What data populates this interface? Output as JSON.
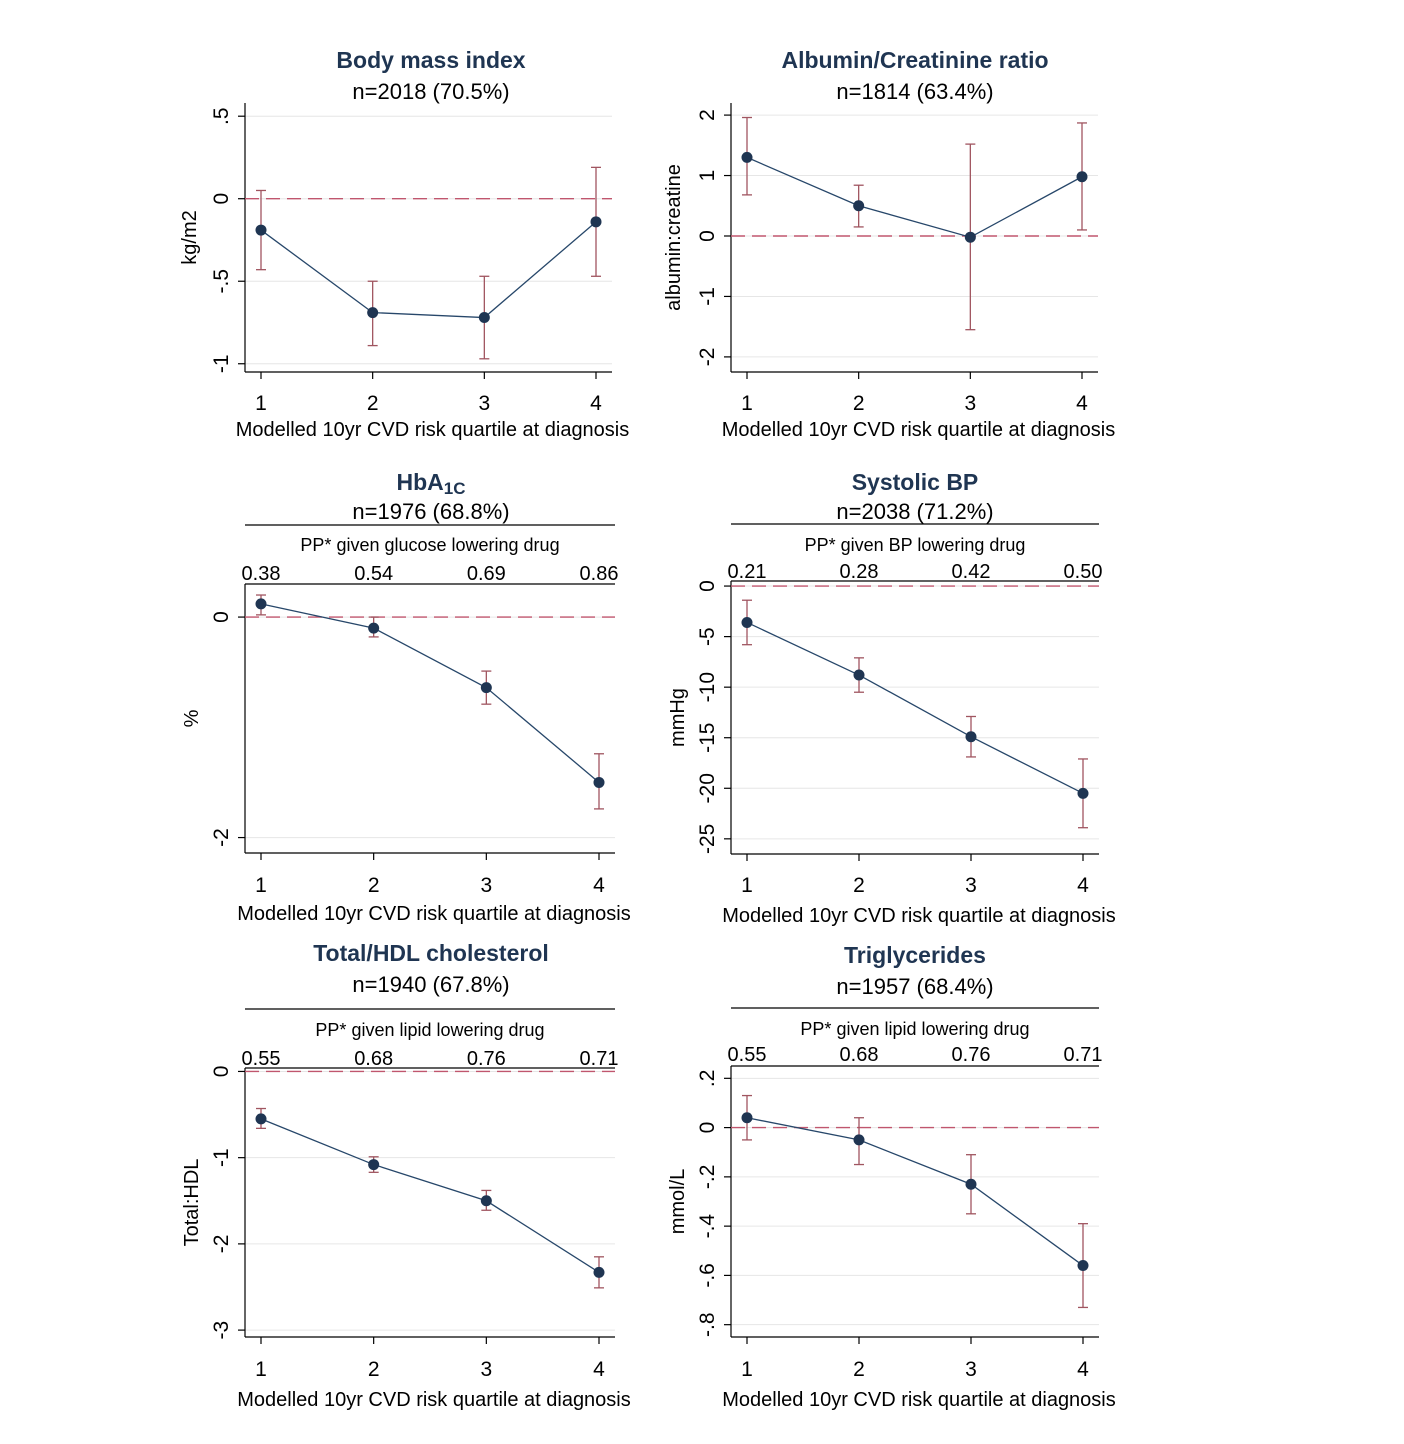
{
  "chart_data": [
    {
      "type": "line",
      "title": "Body mass index",
      "subtitle": "n=2018 (70.5%)",
      "xlabel": "Modelled 10yr CVD risk quartile at diagnosis",
      "ylabel": "kg/m2",
      "x": [
        1,
        2,
        3,
        4
      ],
      "y": [
        -0.19,
        -0.69,
        -0.72,
        -0.14
      ],
      "ci_low": [
        -0.43,
        -0.89,
        -0.97,
        -0.47
      ],
      "ci_high": [
        0.05,
        -0.5,
        -0.47,
        0.19
      ],
      "ylim": [
        -1.05,
        0.58
      ],
      "yticks": [
        -1,
        -0.5,
        0,
        0.5
      ],
      "ytick_labels": [
        "-1",
        "-.5",
        "0",
        ".5"
      ],
      "reference_line": 0,
      "grid": true
    },
    {
      "type": "line",
      "title": "Albumin/Creatinine ratio",
      "subtitle": "n=1814 (63.4%)",
      "xlabel": "Modelled 10yr CVD risk quartile at diagnosis",
      "ylabel": "albumin:creatine",
      "x": [
        1,
        2,
        3,
        4
      ],
      "y": [
        1.3,
        0.5,
        -0.02,
        0.98
      ],
      "ci_low": [
        0.68,
        0.15,
        -1.55,
        0.1
      ],
      "ci_high": [
        1.96,
        0.84,
        1.52,
        1.87
      ],
      "ylim": [
        -2.25,
        2.2
      ],
      "yticks": [
        -2,
        -1,
        0,
        1,
        2
      ],
      "ytick_labels": [
        "-2",
        "-1",
        "0",
        "1",
        "2"
      ],
      "reference_line": 0,
      "grid": true
    },
    {
      "type": "line",
      "title_main": "HbA",
      "title_sub": "1C",
      "subtitle": "n=1976 (68.8%)",
      "pp_label": "PP* given glucose lowering drug",
      "pp_values": [
        "0.38",
        "0.54",
        "0.69",
        "0.86"
      ],
      "xlabel": "Modelled 10yr CVD risk quartile at diagnosis",
      "ylabel": "%",
      "x": [
        1,
        2,
        3,
        4
      ],
      "y": [
        0.12,
        -0.1,
        -0.64,
        -1.5
      ],
      "ci_low": [
        0.02,
        -0.18,
        -0.79,
        -1.74
      ],
      "ci_high": [
        0.2,
        0.0,
        -0.49,
        -1.24
      ],
      "ylim": [
        -2.14,
        0.3
      ],
      "yticks": [
        -2,
        0
      ],
      "ytick_labels": [
        "-2",
        "0"
      ],
      "reference_line": 0,
      "grid": true
    },
    {
      "type": "line",
      "title": "Systolic BP",
      "subtitle": "n=2038 (71.2%)",
      "pp_label": "PP* given BP lowering drug",
      "pp_values": [
        "0.21",
        "0.28",
        "0.42",
        "0.50"
      ],
      "xlabel": "Modelled 10yr CVD risk quartile at diagnosis",
      "ylabel": "mmHg",
      "x": [
        1,
        2,
        3,
        4
      ],
      "y": [
        -3.6,
        -8.8,
        -14.9,
        -20.5
      ],
      "ci_low": [
        -5.8,
        -10.5,
        -16.9,
        -23.9
      ],
      "ci_high": [
        -1.4,
        -7.1,
        -12.9,
        -17.1
      ],
      "ylim": [
        -26.5,
        0.5
      ],
      "yticks": [
        -25,
        -20,
        -15,
        -10,
        -5,
        0
      ],
      "ytick_labels": [
        "-25",
        "-20",
        "-15",
        "-10",
        "-5",
        "0"
      ],
      "reference_line": 0,
      "grid": true
    },
    {
      "type": "line",
      "title": "Total/HDL cholesterol",
      "subtitle": "n=1940 (67.8%)",
      "pp_label": "PP* given lipid lowering drug",
      "pp_values": [
        "0.55",
        "0.68",
        "0.76",
        "0.71"
      ],
      "xlabel": "Modelled 10yr CVD risk quartile at diagnosis",
      "ylabel": "Total:HDL",
      "x": [
        1,
        2,
        3,
        4
      ],
      "y": [
        -0.55,
        -1.08,
        -1.5,
        -2.33
      ],
      "ci_low": [
        -0.66,
        -1.17,
        -1.61,
        -2.51
      ],
      "ci_high": [
        -0.43,
        -0.99,
        -1.38,
        -2.15
      ],
      "ylim": [
        -3.08,
        0.04
      ],
      "yticks": [
        -3,
        -2,
        -1,
        0
      ],
      "ytick_labels": [
        "-3",
        "-2",
        "-1",
        "0"
      ],
      "reference_line": 0,
      "grid": true
    },
    {
      "type": "line",
      "title": "Triglycerides",
      "subtitle": "n=1957 (68.4%)",
      "pp_label": "PP* given lipid lowering drug",
      "pp_values": [
        "0.55",
        "0.68",
        "0.76",
        "0.71"
      ],
      "xlabel": "Modelled 10yr CVD risk quartile at diagnosis",
      "ylabel": "mmol/L",
      "x": [
        1,
        2,
        3,
        4
      ],
      "y": [
        0.04,
        -0.05,
        -0.23,
        -0.56
      ],
      "ci_low": [
        -0.05,
        -0.15,
        -0.35,
        -0.73
      ],
      "ci_high": [
        0.13,
        0.04,
        -0.11,
        -0.39
      ],
      "ylim": [
        -0.85,
        0.25
      ],
      "yticks": [
        -0.8,
        -0.6,
        -0.4,
        -0.2,
        0,
        0.2
      ],
      "ytick_labels": [
        "-.8",
        "-.6",
        "-.4",
        "-.2",
        "0",
        ".2"
      ],
      "reference_line": 0,
      "grid": true
    }
  ],
  "colors": {
    "line": "#27476a",
    "marker": "#1f3552",
    "error_bar": "#a05560",
    "reference_line": "#c0566e",
    "grid": "#e6e6e6",
    "title": "#1f3552"
  }
}
